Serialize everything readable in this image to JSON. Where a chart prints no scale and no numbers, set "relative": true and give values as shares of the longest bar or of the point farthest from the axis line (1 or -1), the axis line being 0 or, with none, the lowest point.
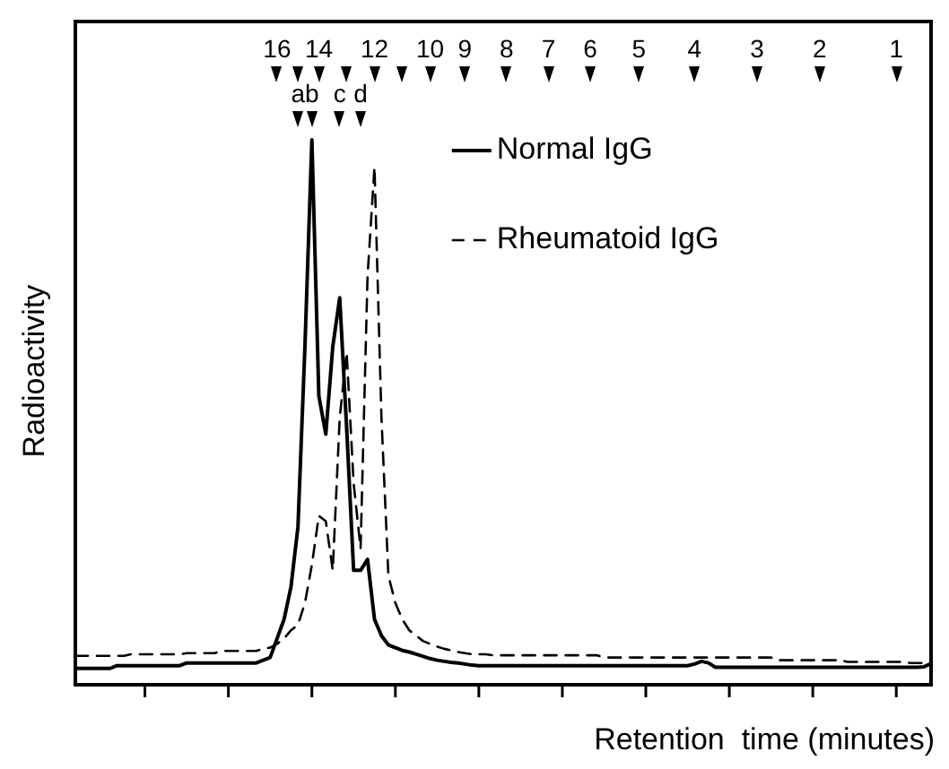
{
  "chart_data": {
    "type": "line",
    "relative": true,
    "xlabel": "Retention  time (minutes)",
    "ylabel": "Radioactivity",
    "categories": [
      null,
      null,
      null,
      null,
      null,
      null,
      null,
      null,
      null,
      null,
      null,
      null,
      null,
      null,
      null,
      null,
      null,
      null,
      null,
      null,
      null,
      null,
      null,
      null,
      null,
      null,
      null,
      null,
      null,
      "16",
      null,
      null,
      null,
      null,
      null,
      "14",
      null,
      null,
      null,
      null,
      null,
      null,
      null,
      "12",
      null,
      null,
      null,
      null,
      null,
      null,
      null,
      "10",
      null,
      null,
      null,
      null,
      "9",
      null,
      null,
      null,
      null,
      null,
      "8",
      null,
      null,
      null,
      null,
      null,
      "7",
      null,
      null,
      null,
      null,
      null,
      "6",
      null,
      null,
      null,
      null,
      null,
      null,
      "5",
      null,
      null,
      null,
      null,
      null,
      null,
      null,
      "4",
      null,
      null,
      null,
      null,
      null,
      null,
      null,
      null,
      "3",
      null,
      null,
      null,
      null,
      null,
      null,
      null,
      null,
      "2",
      null,
      null,
      null,
      null,
      null,
      null,
      null,
      null,
      null,
      null,
      "1",
      null,
      null,
      null,
      null,
      null
    ],
    "annotations": [
      "a",
      "b",
      "c",
      "d"
    ],
    "legend": "top right",
    "series": [
      {
        "name": "Normal IgG",
        "color": "#000000",
        "line_style": "solid",
        "values": [
          0.03,
          0.03,
          0.03,
          0.03,
          0.03,
          0.03,
          0.035,
          0.035,
          0.035,
          0.035,
          0.035,
          0.035,
          0.035,
          0.035,
          0.035,
          0.035,
          0.04,
          0.04,
          0.04,
          0.04,
          0.04,
          0.04,
          0.04,
          0.04,
          0.04,
          0.04,
          0.04,
          0.045,
          0.05,
          0.085,
          0.12,
          0.18,
          0.29,
          0.62,
          1,
          0.53,
          0.46,
          0.62,
          0.71,
          0.47,
          0.21,
          0.21,
          0.23,
          0.12,
          0.09,
          0.073,
          0.068,
          0.063,
          0.06,
          0.056,
          0.052,
          0.048,
          0.045,
          0.043,
          0.041,
          0.04,
          0.038,
          0.036,
          0.035,
          0.035,
          0.035,
          0.035,
          0.035,
          0.035,
          0.035,
          0.035,
          0.035,
          0.035,
          0.035,
          0.035,
          0.035,
          0.035,
          0.035,
          0.035,
          0.035,
          0.035,
          0.035,
          0.035,
          0.035,
          0.035,
          0.035,
          0.035,
          0.035,
          0.035,
          0.035,
          0.035,
          0.035,
          0.035,
          0.035,
          0.038,
          0.043,
          0.04,
          0.032,
          0.032,
          0.032,
          0.032,
          0.032,
          0.032,
          0.032,
          0.032,
          0.032,
          0.032,
          0.032,
          0.032,
          0.032,
          0.032,
          0.032,
          0.032,
          0.032,
          0.032,
          0.032,
          0.032,
          0.032,
          0.032,
          0.032,
          0.032,
          0.032,
          0.032,
          0.032,
          0.032,
          0.032,
          0.032,
          0.033,
          0.039
        ]
      },
      {
        "name": "Rheumatoid IgG",
        "color": "#000000",
        "line_style": "dashed",
        "values": [
          0.053,
          0.053,
          0.053,
          0.053,
          0.053,
          0.053,
          0.053,
          0.053,
          0.056,
          0.056,
          0.056,
          0.056,
          0.056,
          0.056,
          0.056,
          0.056,
          0.058,
          0.058,
          0.058,
          0.058,
          0.058,
          0.062,
          0.062,
          0.062,
          0.062,
          0.062,
          0.062,
          0.066,
          0.068,
          0.075,
          0.085,
          0.1,
          0.11,
          0.15,
          0.22,
          0.31,
          0.3,
          0.21,
          0.49,
          0.61,
          0.37,
          0.25,
          0.75,
          0.95,
          0.49,
          0.2,
          0.15,
          0.12,
          0.1,
          0.09,
          0.08,
          0.075,
          0.07,
          0.066,
          0.063,
          0.06,
          0.058,
          0.056,
          0.056,
          0.056,
          0.054,
          0.054,
          0.054,
          0.054,
          0.054,
          0.054,
          0.054,
          0.054,
          0.054,
          0.054,
          0.054,
          0.054,
          0.054,
          0.054,
          0.054,
          0.054,
          0.05,
          0.05,
          0.05,
          0.05,
          0.05,
          0.05,
          0.05,
          0.05,
          0.05,
          0.05,
          0.05,
          0.05,
          0.05,
          0.05,
          0.05,
          0.05,
          0.05,
          0.05,
          0.05,
          0.05,
          0.05,
          0.05,
          0.05,
          0.05,
          0.05,
          0.045,
          0.045,
          0.045,
          0.045,
          0.045,
          0.045,
          0.045,
          0.045,
          0.045,
          0.045,
          0.042,
          0.042,
          0.042,
          0.042,
          0.042,
          0.042,
          0.042,
          0.042,
          0.042,
          0.04,
          0.04,
          0.04,
          0.04
        ]
      }
    ]
  }
}
